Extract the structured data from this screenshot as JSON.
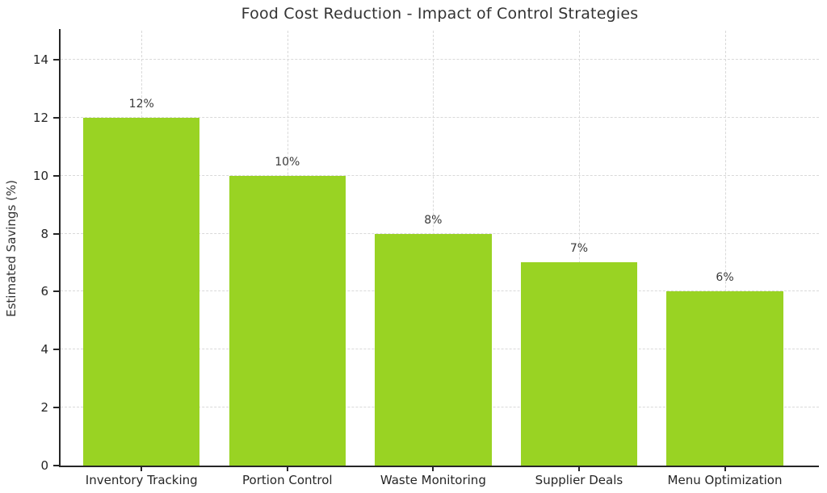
{
  "chart_data": {
    "type": "bar",
    "title": "Food Cost Reduction - Impact of Control Strategies",
    "xlabel": "",
    "ylabel": "Estimated Savings (%)",
    "categories": [
      "Inventory Tracking",
      "Portion Control",
      "Waste Monitoring",
      "Supplier Deals",
      "Menu Optimization"
    ],
    "values": [
      12,
      10,
      8,
      7,
      6
    ],
    "bar_labels": [
      "12%",
      "10%",
      "8%",
      "7%",
      "6%"
    ],
    "yticks": [
      0,
      2,
      4,
      6,
      8,
      10,
      12,
      14
    ],
    "ylim": [
      0,
      15
    ],
    "legend": "none",
    "grid": {
      "show": true,
      "style": "dashed",
      "axes": "both"
    },
    "colors": {
      "bar": "#99d323",
      "background": "#ffffff",
      "axis": "#262626",
      "grid": "#d9d9d9",
      "text": "#333333"
    }
  }
}
